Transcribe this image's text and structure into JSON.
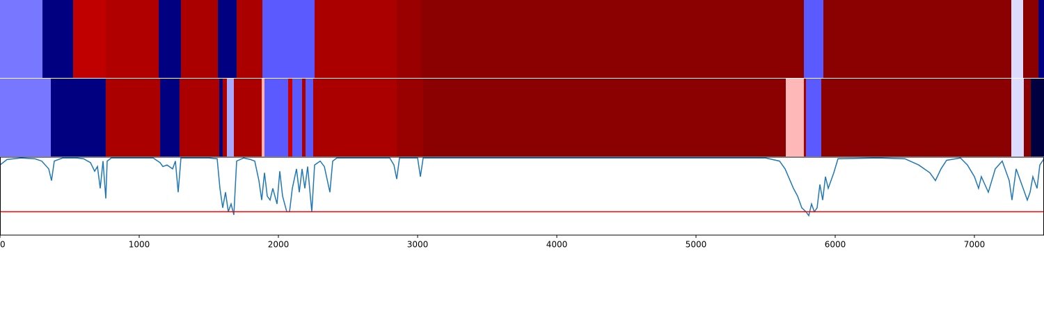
{
  "chart_data": [
    {
      "type": "segments",
      "xlim": [
        0,
        7500
      ],
      "segments": [
        {
          "start": 0,
          "end": 305,
          "color": "#7777ff"
        },
        {
          "start": 305,
          "end": 525,
          "color": "#000080"
        },
        {
          "start": 525,
          "end": 760,
          "color": "#c00000"
        },
        {
          "start": 760,
          "end": 1140,
          "color": "#b00000"
        },
        {
          "start": 1140,
          "end": 1300,
          "color": "#000080"
        },
        {
          "start": 1300,
          "end": 1565,
          "color": "#aa0000"
        },
        {
          "start": 1565,
          "end": 1700,
          "color": "#000080"
        },
        {
          "start": 1700,
          "end": 1885,
          "color": "#aa0000"
        },
        {
          "start": 1885,
          "end": 2260,
          "color": "#5a5aff"
        },
        {
          "start": 2260,
          "end": 2850,
          "color": "#aa0000"
        },
        {
          "start": 2850,
          "end": 3025,
          "color": "#9a0000"
        },
        {
          "start": 3025,
          "end": 5775,
          "color": "#8b0000"
        },
        {
          "start": 5775,
          "end": 5915,
          "color": "#5a5aff"
        },
        {
          "start": 5915,
          "end": 7265,
          "color": "#8b0000"
        },
        {
          "start": 7265,
          "end": 7350,
          "color": "#dcdcff"
        },
        {
          "start": 7350,
          "end": 7460,
          "color": "#8b0000"
        },
        {
          "start": 7460,
          "end": 7500,
          "color": "#000080"
        }
      ]
    },
    {
      "type": "segments",
      "xlim": [
        0,
        7500
      ],
      "segments": [
        {
          "start": 0,
          "end": 365,
          "color": "#7777ff"
        },
        {
          "start": 365,
          "end": 760,
          "color": "#000080"
        },
        {
          "start": 760,
          "end": 1150,
          "color": "#aa0000"
        },
        {
          "start": 1150,
          "end": 1290,
          "color": "#000080"
        },
        {
          "start": 1290,
          "end": 1575,
          "color": "#aa0000"
        },
        {
          "start": 1575,
          "end": 1600,
          "color": "#000080"
        },
        {
          "start": 1600,
          "end": 1630,
          "color": "#aa0000"
        },
        {
          "start": 1630,
          "end": 1680,
          "color": "#a8a8ff"
        },
        {
          "start": 1680,
          "end": 1880,
          "color": "#aa0000"
        },
        {
          "start": 1880,
          "end": 1900,
          "color": "#ffb0b0"
        },
        {
          "start": 1900,
          "end": 2070,
          "color": "#5a5aff"
        },
        {
          "start": 2070,
          "end": 2100,
          "color": "#cc0000"
        },
        {
          "start": 2100,
          "end": 2170,
          "color": "#5a5aff"
        },
        {
          "start": 2170,
          "end": 2195,
          "color": "#aa0000"
        },
        {
          "start": 2195,
          "end": 2250,
          "color": "#5a5aff"
        },
        {
          "start": 2250,
          "end": 2850,
          "color": "#aa0000"
        },
        {
          "start": 2850,
          "end": 3040,
          "color": "#990000"
        },
        {
          "start": 3040,
          "end": 5645,
          "color": "#8b0000"
        },
        {
          "start": 5645,
          "end": 5775,
          "color": "#ffb8b8"
        },
        {
          "start": 5775,
          "end": 5790,
          "color": "#aa0000"
        },
        {
          "start": 5790,
          "end": 5900,
          "color": "#5a5aff"
        },
        {
          "start": 5900,
          "end": 7265,
          "color": "#8b0000"
        },
        {
          "start": 7265,
          "end": 7355,
          "color": "#dcdcff"
        },
        {
          "start": 7355,
          "end": 7405,
          "color": "#8b0000"
        },
        {
          "start": 7405,
          "end": 7500,
          "color": "#000040"
        }
      ]
    },
    {
      "type": "line",
      "xlim": [
        0,
        7500
      ],
      "ylim": [
        0,
        1
      ],
      "xticks": [
        0,
        1000,
        2000,
        3000,
        4000,
        5000,
        6000,
        7000
      ],
      "color": "#1f77b4",
      "threshold": 0.3,
      "threshold_color": "#ff0000",
      "x": [
        0,
        50,
        150,
        250,
        300,
        350,
        370,
        390,
        450,
        550,
        600,
        650,
        680,
        700,
        720,
        740,
        760,
        770,
        800,
        1100,
        1150,
        1170,
        1200,
        1240,
        1260,
        1280,
        1300,
        1500,
        1560,
        1580,
        1600,
        1620,
        1640,
        1660,
        1680,
        1700,
        1750,
        1800,
        1830,
        1860,
        1880,
        1900,
        1920,
        1940,
        1960,
        1990,
        2010,
        2030,
        2060,
        2080,
        2100,
        2130,
        2150,
        2170,
        2190,
        2210,
        2240,
        2260,
        2300,
        2330,
        2370,
        2390,
        2420,
        2800,
        2830,
        2850,
        2870,
        3000,
        3020,
        3040,
        5500,
        5600,
        5640,
        5700,
        5730,
        5760,
        5790,
        5810,
        5830,
        5850,
        5870,
        5890,
        5910,
        5930,
        5950,
        5990,
        6020,
        6300,
        6500,
        6600,
        6680,
        6720,
        6760,
        6800,
        6900,
        6950,
        7000,
        7030,
        7050,
        7100,
        7150,
        7200,
        7250,
        7270,
        7300,
        7350,
        7380,
        7400,
        7420,
        7450,
        7470,
        7500
      ],
      "values": [
        0.9,
        0.97,
        0.99,
        0.98,
        0.95,
        0.85,
        0.7,
        0.95,
        0.99,
        0.99,
        0.98,
        0.93,
        0.82,
        0.88,
        0.6,
        0.95,
        0.47,
        0.95,
        0.99,
        0.99,
        0.93,
        0.88,
        0.9,
        0.85,
        0.95,
        0.55,
        0.99,
        0.99,
        0.98,
        0.6,
        0.35,
        0.55,
        0.3,
        0.4,
        0.26,
        0.95,
        0.99,
        0.97,
        0.95,
        0.7,
        0.45,
        0.8,
        0.5,
        0.45,
        0.6,
        0.4,
        0.82,
        0.5,
        0.3,
        0.3,
        0.6,
        0.85,
        0.55,
        0.85,
        0.6,
        0.88,
        0.3,
        0.9,
        0.95,
        0.88,
        0.55,
        0.95,
        0.99,
        0.99,
        0.9,
        0.72,
        0.99,
        0.99,
        0.75,
        0.99,
        0.99,
        0.95,
        0.85,
        0.6,
        0.5,
        0.35,
        0.3,
        0.25,
        0.4,
        0.3,
        0.35,
        0.65,
        0.45,
        0.75,
        0.6,
        0.8,
        0.98,
        0.99,
        0.98,
        0.9,
        0.8,
        0.7,
        0.85,
        0.96,
        0.99,
        0.9,
        0.75,
        0.6,
        0.75,
        0.55,
        0.85,
        0.95,
        0.7,
        0.45,
        0.85,
        0.6,
        0.45,
        0.55,
        0.75,
        0.6,
        0.9,
        0.98
      ]
    }
  ]
}
